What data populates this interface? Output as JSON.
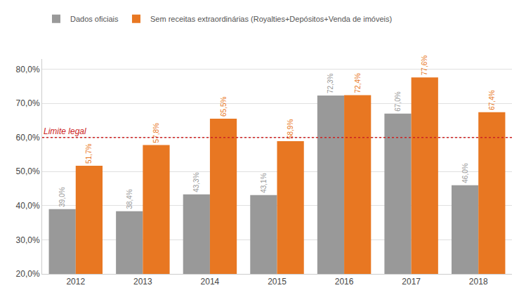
{
  "chart_data": {
    "type": "bar",
    "categories": [
      "2012",
      "2013",
      "2014",
      "2015",
      "2016",
      "2017",
      "2018"
    ],
    "series": [
      {
        "name": "Dados oficiais",
        "color": "#999999",
        "values": [
          39.0,
          38.4,
          43.3,
          43.1,
          72.3,
          67.0,
          46.0
        ],
        "value_labels": [
          "39,0%",
          "38,4%",
          "43,3%",
          "43,1%",
          "72,3%",
          "67,0%",
          "46,0%"
        ]
      },
      {
        "name": "Sem receitas extraordinárias (Royalties+Depósitos+Venda de imóveis)",
        "color": "#E87722",
        "values": [
          51.7,
          57.8,
          65.5,
          58.9,
          72.4,
          77.6,
          67.4
        ],
        "value_labels": [
          "51,7%",
          "57,8%",
          "65,5%",
          "58,9%",
          "72,4%",
          "77,6%",
          "67,4%"
        ]
      }
    ],
    "ylim": [
      20.0,
      83.0
    ],
    "yticks": [
      {
        "value": 20.0,
        "label": "20,0%"
      },
      {
        "value": 30.0,
        "label": "30,0%"
      },
      {
        "value": 40.0,
        "label": "40,0%"
      },
      {
        "value": 50.0,
        "label": "50,0%"
      },
      {
        "value": 60.0,
        "label": "60,0%"
      },
      {
        "value": 70.0,
        "label": "70,0%"
      },
      {
        "value": 80.0,
        "label": "80,0%"
      }
    ],
    "annotations": [
      {
        "text": "Limite legal",
        "y": 60.0,
        "color": "#cc2222",
        "line_style": "dotted"
      }
    ],
    "data_labels": true,
    "grid": true,
    "legend": "top"
  }
}
